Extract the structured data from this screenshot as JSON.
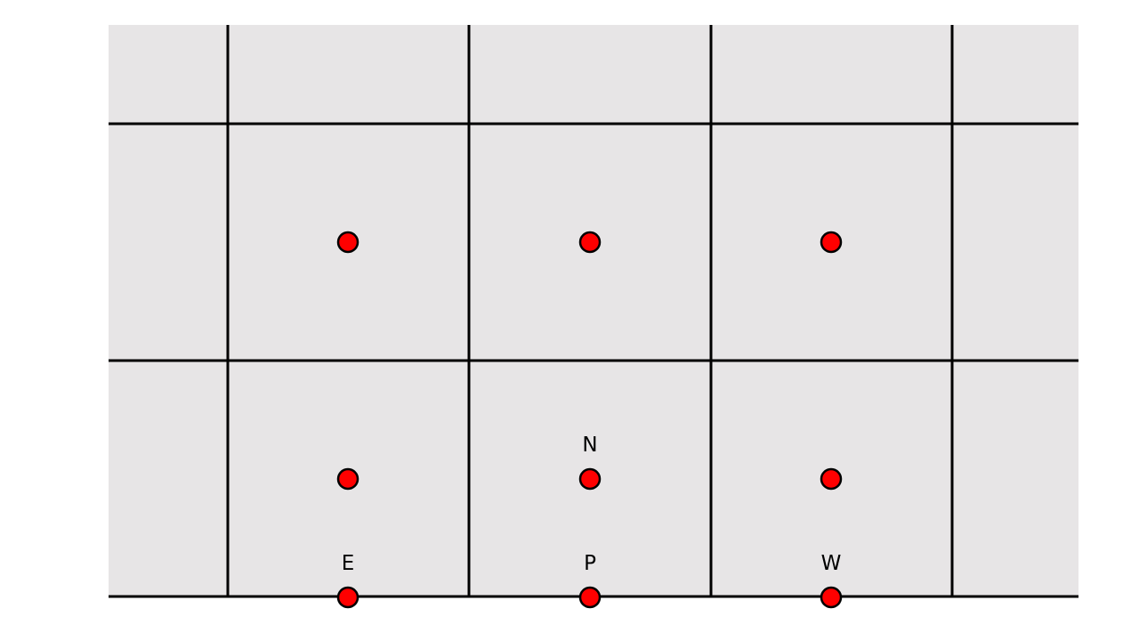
{
  "colors": {
    "page_background": "#ffffff",
    "grid_fill": "#e7e5e6",
    "grid_line": "#000000",
    "node_fill": "#ff0000",
    "node_stroke": "#000000"
  },
  "nodes": {
    "top_row": [
      {
        "id": "node-r1-c1",
        "label": ""
      },
      {
        "id": "node-r1-c2",
        "label": ""
      },
      {
        "id": "node-r1-c3",
        "label": ""
      }
    ],
    "middle_row": [
      {
        "id": "node-r2-c1",
        "label": ""
      },
      {
        "id": "node-N",
        "label": "N"
      },
      {
        "id": "node-r2-c3",
        "label": ""
      }
    ],
    "bottom_row": [
      {
        "id": "node-E",
        "label": "E"
      },
      {
        "id": "node-P",
        "label": "P"
      },
      {
        "id": "node-W",
        "label": "W"
      }
    ]
  }
}
